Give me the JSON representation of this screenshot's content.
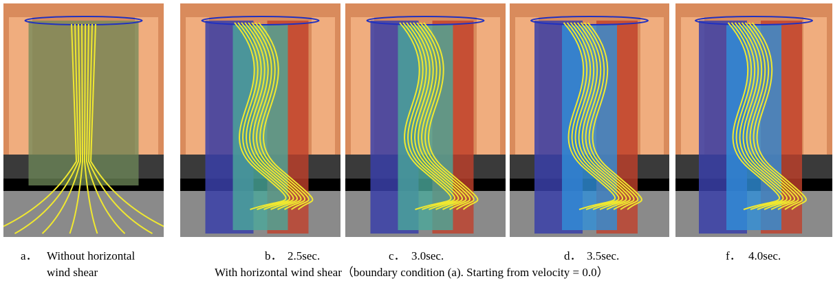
{
  "figure": {
    "panels": [
      {
        "label": "a．",
        "caption_lines": [
          "Without horizontal",
          "wind shear"
        ]
      },
      {
        "label": "b．",
        "caption_lines": [
          "2.5sec."
        ]
      },
      {
        "label": "c．",
        "caption_lines": [
          "3.0sec."
        ]
      },
      {
        "label": "d．",
        "caption_lines": [
          "3.5sec."
        ]
      },
      {
        "label": "f．",
        "caption_lines": [
          "4.0sec."
        ]
      }
    ],
    "group_caption": "With horizontal wind shear（boundary condition (a).  Starting from velocity = 0.0）"
  }
}
